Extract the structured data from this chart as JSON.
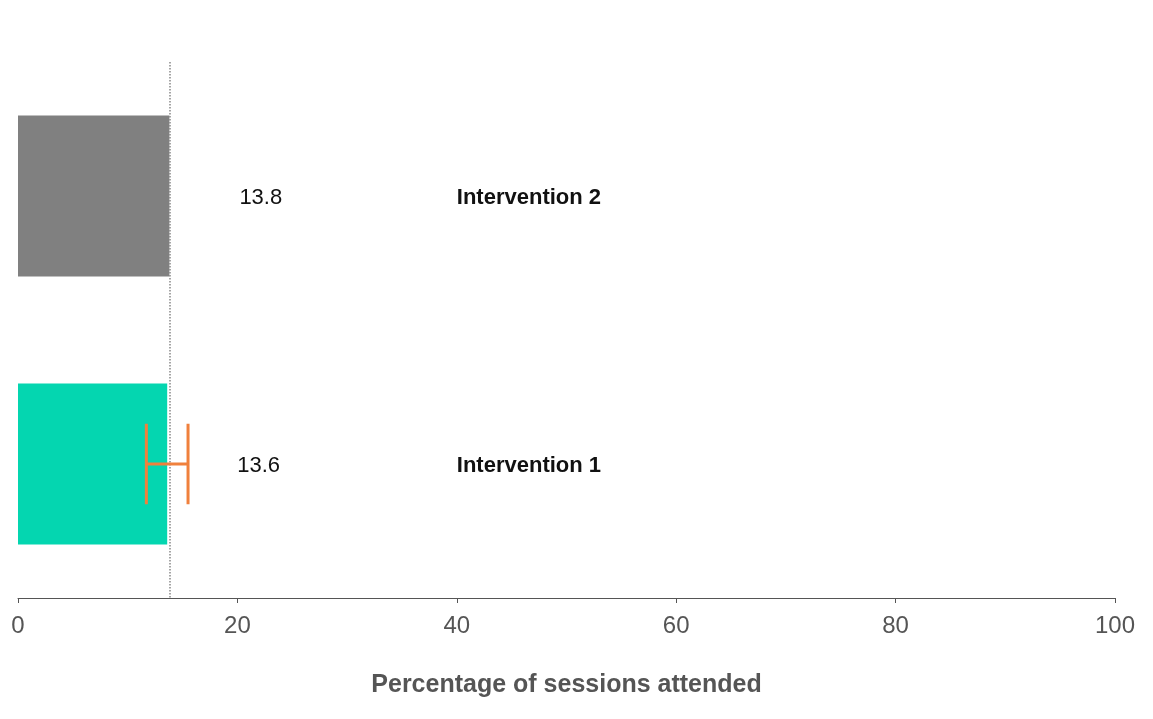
{
  "chart_data": {
    "type": "bar",
    "orientation": "horizontal",
    "categories": [
      "Intervention 2",
      "Intervention 1"
    ],
    "values": [
      13.8,
      13.6
    ],
    "colors": [
      "#808080",
      "#04d6b0"
    ],
    "errors": [
      null,
      [
        11.7,
        15.5
      ]
    ],
    "data_labels": true,
    "xlabel": "Percentage of sessions attended",
    "xlim": [
      0,
      100
    ],
    "xticks": [
      0,
      20,
      40,
      60,
      80,
      100
    ],
    "ref_lines": [
      {
        "axis": "x",
        "value": 13.8,
        "color": "#888888",
        "line_style": "dotted"
      }
    ],
    "grid": false
  }
}
